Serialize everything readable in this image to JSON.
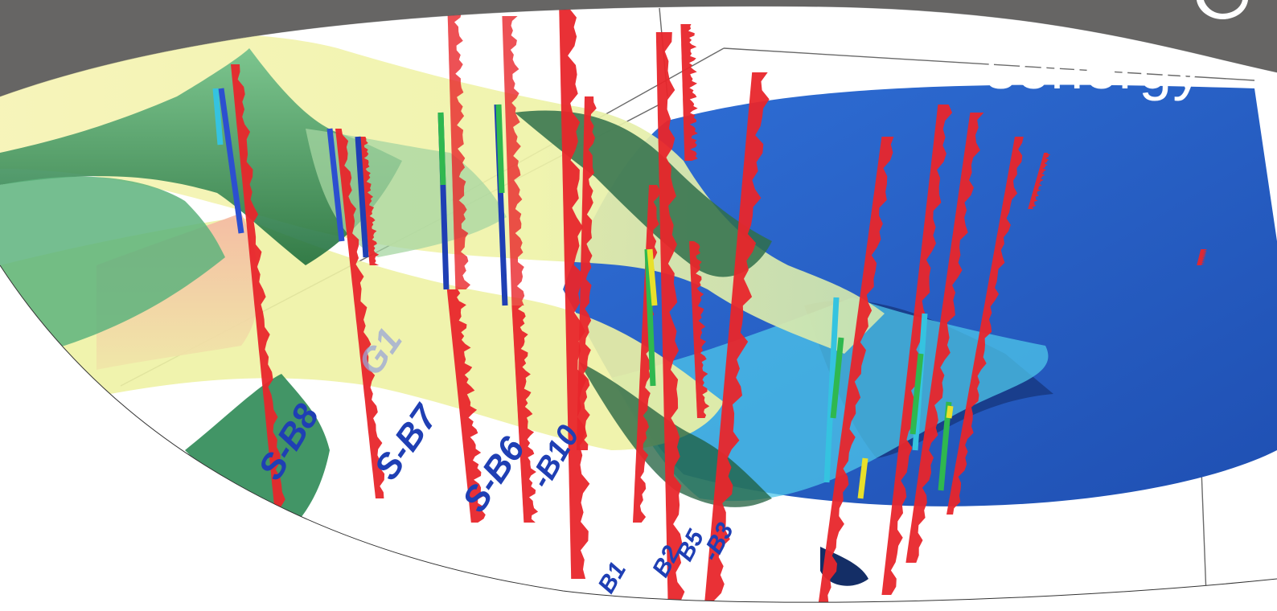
{
  "brand": {
    "name": "senergy"
  },
  "colors": {
    "banner": "#666564",
    "well_log": "#e8262b",
    "surface_green": "#2f8a4e",
    "surface_yellow": "#f3f2a8",
    "surface_blue": "#2c62c9",
    "surface_cyan": "#4ec7ea",
    "label_blue": "#1f3fb4"
  },
  "well_labels": [
    {
      "id": "s-b8",
      "text": "S-B8"
    },
    {
      "id": "g1",
      "text": "G1"
    },
    {
      "id": "s-b7",
      "text": "S-B7"
    },
    {
      "id": "s-b6",
      "text": "S-B6"
    },
    {
      "id": "b10",
      "text": "-B10"
    },
    {
      "id": "b1",
      "text": "B1"
    },
    {
      "id": "b2",
      "text": "B2"
    },
    {
      "id": "b5",
      "text": "B5"
    },
    {
      "id": "b3",
      "text": "-B3"
    }
  ]
}
